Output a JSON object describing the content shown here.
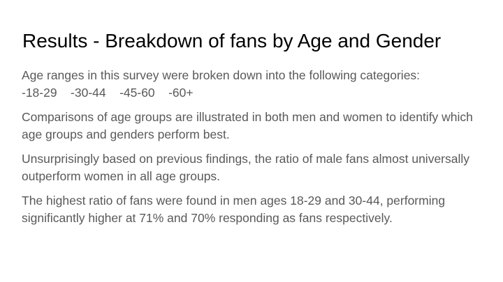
{
  "slide": {
    "title": "Results - Breakdown of fans by Age and Gender",
    "paragraphs": [
      {
        "line1": "Age ranges in this survey were broken down into the following categories:",
        "categories_line": "-18-29    -30-44    -45-60    -60+"
      },
      {
        "text": "Comparisons of age groups are illustrated in both men and women to identify which age groups and genders perform best."
      },
      {
        "text": "Unsurprisingly based on previous findings, the ratio of male fans almost universally outperform women in all age groups."
      },
      {
        "text": "The highest ratio of fans were found in men ages 18-29 and 30-44, performing significantly higher at 71% and 70% responding as fans respectively."
      }
    ],
    "colors": {
      "background": "#ffffff",
      "title": "#000000",
      "body": "#595959"
    }
  }
}
